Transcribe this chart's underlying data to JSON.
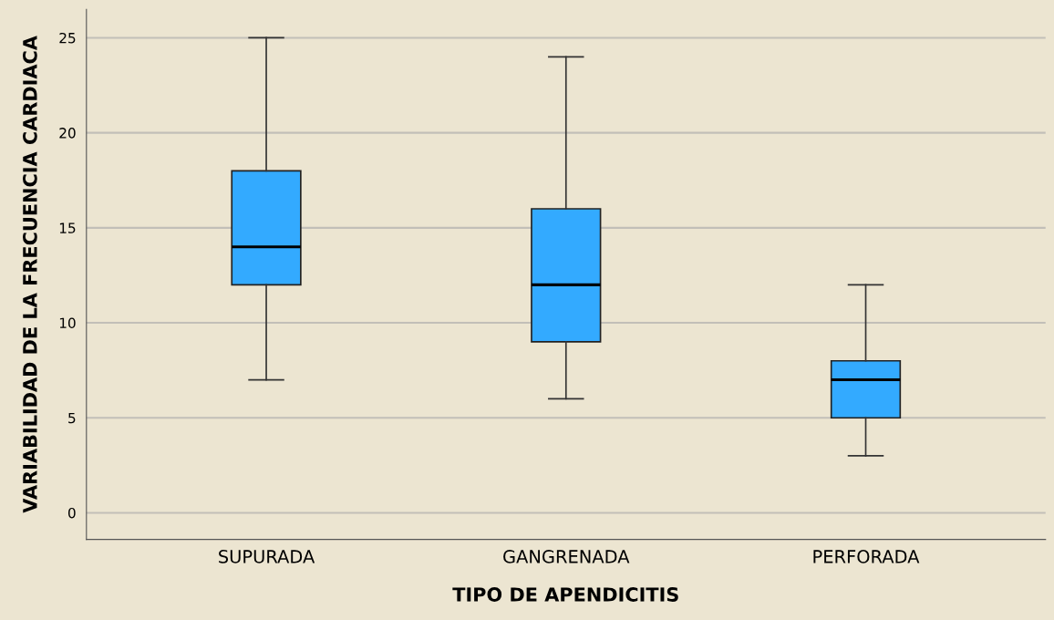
{
  "chart_data": {
    "type": "box",
    "xlabel": "TIPO DE APENDICITIS",
    "ylabel": "VARIABILIDAD DE LA FRECUENCIA CARDIACA",
    "categories": [
      "SUPURADA",
      "GANGRENADA",
      "PERFORADA"
    ],
    "series": [
      {
        "color": "#33aaff",
        "boxes": [
          {
            "low": 7,
            "q1": 12,
            "median": 14,
            "q3": 18,
            "high": 25
          },
          {
            "low": 6,
            "q1": 9,
            "median": 12,
            "q3": 16,
            "high": 24
          },
          {
            "low": 3,
            "q1": 5,
            "median": 7,
            "q3": 8,
            "high": 12
          }
        ]
      }
    ],
    "ylim": [
      -1.4,
      26.5
    ],
    "yticks": [
      0,
      5,
      10,
      15,
      20,
      25
    ],
    "grid": "y"
  }
}
